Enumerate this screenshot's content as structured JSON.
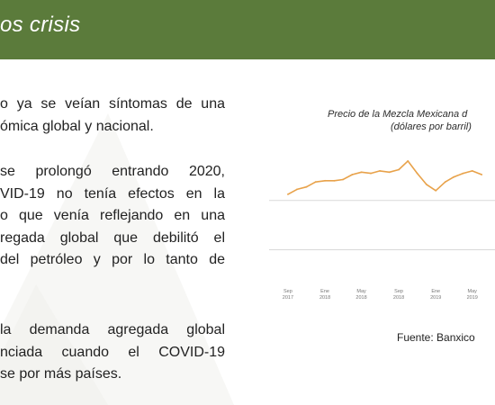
{
  "slide": {
    "title": "os crisis",
    "accent_color": "#5b7b3b",
    "paragraphs": [
      {
        "lines": [
          "o ya se veían síntomas de una",
          "ómica global y nacional."
        ]
      },
      {
        "lines": [
          "se prolongó entrando 2020,",
          "VID-19 no tenía efectos en la",
          "o que venía reflejando en una",
          "regada global que debilitó el",
          "del petróleo y por lo tanto de"
        ]
      },
      {
        "lines": [
          "la demanda agregada global",
          "nciada cuando el COVID-19",
          "se por más países."
        ]
      }
    ],
    "source": "Fuente: Banxico"
  },
  "chart_data": {
    "type": "line",
    "title": "Precio de la Mezcla Mexicana d",
    "subtitle": "(dólares por barril)",
    "line_color": "#e8a24a",
    "x_tick_labels": [
      {
        "month": "Sep",
        "year": "2017"
      },
      {
        "month": "Ene",
        "year": "2018"
      },
      {
        "month": "May",
        "year": "2018"
      },
      {
        "month": "Sep",
        "year": "2018"
      },
      {
        "month": "Ene",
        "year": "2019"
      },
      {
        "month": "May",
        "year": "2019"
      }
    ],
    "ylim": [
      -15,
      80
    ],
    "gridlines": [
      0,
      40
    ],
    "series": [
      {
        "x": [
          "2017-09-01",
          "2017-10-01",
          "2017-11-01",
          "2017-12-01",
          "2018-01-01",
          "2018-02-01",
          "2018-03-01",
          "2018-04-01",
          "2018-05-01",
          "2018-06-01",
          "2018-07-01",
          "2018-08-01",
          "2018-09-01",
          "2018-10-01",
          "2018-11-01",
          "2018-12-01",
          "2019-01-01",
          "2019-02-01",
          "2019-03-01",
          "2019-04-01",
          "2019-05-01",
          "2019-06-01"
        ],
        "values": [
          45,
          49,
          51,
          55,
          56,
          56,
          57,
          61,
          63,
          62,
          64,
          63,
          65,
          72,
          62,
          53,
          48,
          55,
          59,
          62,
          64,
          61
        ]
      }
    ]
  }
}
